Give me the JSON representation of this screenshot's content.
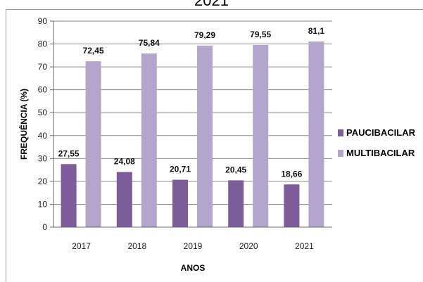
{
  "header": {
    "title": "2021"
  },
  "chart_data": {
    "type": "bar",
    "title": "2021",
    "xlabel": "ANOS",
    "ylabel": "FREQUÊNCIA (%)",
    "ylim": [
      0,
      90
    ],
    "yticks": [
      0,
      10,
      20,
      30,
      40,
      50,
      60,
      70,
      80,
      90
    ],
    "grid": true,
    "legend_position": "right",
    "categories": [
      "2017",
      "2018",
      "2019",
      "2020",
      "2021"
    ],
    "series": [
      {
        "name": "PAUCIBACILAR",
        "color": "#7b5d9a",
        "values": [
          27.55,
          24.08,
          20.71,
          20.45,
          18.66
        ],
        "labels": [
          "27,55",
          "24,08",
          "20,71",
          "20,45",
          "18,66"
        ]
      },
      {
        "name": "MULTIBACILAR",
        "color": "#b3a5cc",
        "values": [
          72.45,
          75.84,
          79.29,
          79.55,
          81.1
        ],
        "labels": [
          "72,45",
          "75,84",
          "79,29",
          "79,55",
          "81,1"
        ]
      }
    ]
  }
}
